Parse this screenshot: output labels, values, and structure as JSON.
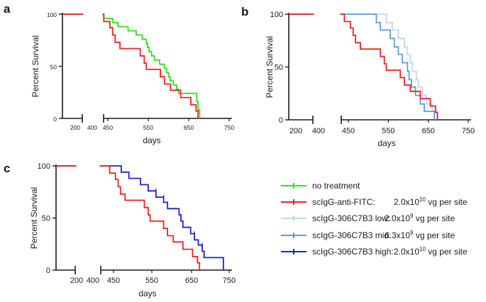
{
  "chart_data": [
    {
      "panel": "a",
      "type": "line",
      "subtype": "kaplan-meier",
      "xlabel": "days",
      "ylabel": "Percent Survival",
      "x_break": [
        200,
        400,
        450
      ],
      "xticks": [
        200,
        400,
        450,
        550,
        650,
        750
      ],
      "yticks": [
        0,
        50,
        100
      ],
      "xlim": [
        130,
        750
      ],
      "ylim": [
        0,
        100
      ],
      "series": [
        {
          "name": "no treatment",
          "color": "#33dd22",
          "points": [
            [
              130,
              100
            ],
            [
              440,
              100
            ],
            [
              440,
              96
            ],
            [
              462,
              96
            ],
            [
              462,
              92
            ],
            [
              475,
              92
            ],
            [
              475,
              88
            ],
            [
              500,
              88
            ],
            [
              500,
              84
            ],
            [
              520,
              84
            ],
            [
              520,
              80
            ],
            [
              535,
              80
            ],
            [
              535,
              76
            ],
            [
              545,
              76
            ],
            [
              545,
              72
            ],
            [
              548,
              72
            ],
            [
              548,
              68
            ],
            [
              552,
              68
            ],
            [
              552,
              64
            ],
            [
              558,
              64
            ],
            [
              558,
              60
            ],
            [
              565,
              60
            ],
            [
              565,
              56
            ],
            [
              578,
              56
            ],
            [
              578,
              52
            ],
            [
              590,
              52
            ],
            [
              590,
              48
            ],
            [
              595,
              48
            ],
            [
              595,
              44
            ],
            [
              600,
              44
            ],
            [
              600,
              40
            ],
            [
              604,
              40
            ],
            [
              604,
              36
            ],
            [
              612,
              36
            ],
            [
              612,
              32
            ],
            [
              620,
              32
            ],
            [
              620,
              28
            ],
            [
              625,
              28
            ],
            [
              625,
              24
            ],
            [
              670,
              24
            ],
            [
              670,
              16
            ],
            [
              673,
              16
            ],
            [
              673,
              8
            ],
            [
              677,
              8
            ],
            [
              677,
              0
            ]
          ]
        },
        {
          "name": "scIgG-anti-FITC",
          "color": "#ee2222",
          "points": [
            [
              130,
              100
            ],
            [
              440,
              100
            ],
            [
              440,
              93
            ],
            [
              455,
              93
            ],
            [
              455,
              87
            ],
            [
              462,
              87
            ],
            [
              462,
              80
            ],
            [
              468,
              80
            ],
            [
              468,
              73
            ],
            [
              480,
              73
            ],
            [
              480,
              67
            ],
            [
              530,
              67
            ],
            [
              530,
              60
            ],
            [
              540,
              60
            ],
            [
              540,
              53
            ],
            [
              545,
              53
            ],
            [
              545,
              47
            ],
            [
              580,
              47
            ],
            [
              580,
              40
            ],
            [
              590,
              40
            ],
            [
              590,
              33
            ],
            [
              605,
              33
            ],
            [
              605,
              27
            ],
            [
              630,
              27
            ],
            [
              630,
              20
            ],
            [
              655,
              20
            ],
            [
              655,
              13
            ],
            [
              668,
              13
            ],
            [
              668,
              7
            ],
            [
              673,
              7
            ],
            [
              673,
              0
            ]
          ]
        }
      ]
    },
    {
      "panel": "b",
      "type": "line",
      "subtype": "kaplan-meier",
      "xlabel": "days",
      "ylabel": "Percent Survival",
      "x_break": [
        200,
        400,
        450
      ],
      "xticks": [
        200,
        400,
        450,
        550,
        650,
        750
      ],
      "yticks": [
        0,
        50,
        100
      ],
      "xlim": [
        130,
        750
      ],
      "ylim": [
        0,
        100
      ],
      "series": [
        {
          "name": "scIgG-306C7B3 low",
          "color": "#bcd9f0",
          "points": [
            [
              130,
              100
            ],
            [
              545,
              100
            ],
            [
              545,
              92
            ],
            [
              560,
              92
            ],
            [
              560,
              85
            ],
            [
              575,
              85
            ],
            [
              575,
              77
            ],
            [
              590,
              77
            ],
            [
              590,
              69
            ],
            [
              597,
              69
            ],
            [
              597,
              62
            ],
            [
              605,
              62
            ],
            [
              605,
              54
            ],
            [
              610,
              54
            ],
            [
              610,
              46
            ],
            [
              620,
              46
            ],
            [
              620,
              38
            ],
            [
              625,
              38
            ],
            [
              625,
              31
            ],
            [
              635,
              31
            ],
            [
              635,
              23
            ],
            [
              645,
              23
            ],
            [
              645,
              15
            ],
            [
              660,
              15
            ],
            [
              660,
              8
            ],
            [
              672,
              8
            ],
            [
              672,
              0
            ]
          ]
        },
        {
          "name": "scIgG-306C7B3 mid",
          "color": "#5a9fdc",
          "points": [
            [
              130,
              100
            ],
            [
              520,
              100
            ],
            [
              520,
              92
            ],
            [
              530,
              92
            ],
            [
              530,
              85
            ],
            [
              555,
              85
            ],
            [
              555,
              77
            ],
            [
              565,
              77
            ],
            [
              565,
              69
            ],
            [
              575,
              69
            ],
            [
              575,
              62
            ],
            [
              585,
              62
            ],
            [
              585,
              54
            ],
            [
              598,
              54
            ],
            [
              598,
              46
            ],
            [
              602,
              46
            ],
            [
              602,
              38
            ],
            [
              608,
              38
            ],
            [
              608,
              31
            ],
            [
              618,
              31
            ],
            [
              618,
              23
            ],
            [
              630,
              23
            ],
            [
              630,
              15
            ],
            [
              640,
              15
            ],
            [
              640,
              8
            ],
            [
              665,
              8
            ],
            [
              665,
              0
            ]
          ]
        },
        {
          "name": "scIgG-anti-FITC",
          "color": "#ee2222",
          "points": [
            [
              130,
              100
            ],
            [
              440,
              100
            ],
            [
              440,
              93
            ],
            [
              455,
              93
            ],
            [
              455,
              87
            ],
            [
              462,
              87
            ],
            [
              462,
              80
            ],
            [
              468,
              80
            ],
            [
              468,
              73
            ],
            [
              480,
              73
            ],
            [
              480,
              67
            ],
            [
              530,
              67
            ],
            [
              530,
              60
            ],
            [
              540,
              60
            ],
            [
              540,
              53
            ],
            [
              545,
              53
            ],
            [
              545,
              47
            ],
            [
              580,
              47
            ],
            [
              580,
              40
            ],
            [
              590,
              40
            ],
            [
              590,
              33
            ],
            [
              605,
              33
            ],
            [
              605,
              27
            ],
            [
              630,
              27
            ],
            [
              630,
              20
            ],
            [
              655,
              20
            ],
            [
              655,
              13
            ],
            [
              668,
              13
            ],
            [
              668,
              7
            ],
            [
              673,
              7
            ],
            [
              673,
              0
            ]
          ]
        }
      ]
    },
    {
      "panel": "c",
      "type": "line",
      "subtype": "kaplan-meier",
      "xlabel": "days",
      "ylabel": "Percent Survival",
      "x_break": [
        200,
        400,
        450
      ],
      "xticks": [
        200,
        400,
        450,
        550,
        650,
        750
      ],
      "yticks": [
        0,
        50,
        100
      ],
      "xlim": [
        130,
        750
      ],
      "ylim": [
        0,
        100
      ],
      "series": [
        {
          "name": "scIgG-306C7B3 high",
          "color": "#1e22cc",
          "points": [
            [
              130,
              100
            ],
            [
              470,
              100
            ],
            [
              470,
              94
            ],
            [
              490,
              94
            ],
            [
              490,
              88
            ],
            [
              520,
              88
            ],
            [
              520,
              82
            ],
            [
              540,
              82
            ],
            [
              540,
              76
            ],
            [
              560,
              76
            ],
            [
              560,
              70
            ],
            [
              580,
              70
            ],
            [
              580,
              65
            ],
            [
              590,
              65
            ],
            [
              590,
              59
            ],
            [
              620,
              59
            ],
            [
              620,
              53
            ],
            [
              625,
              53
            ],
            [
              625,
              47
            ],
            [
              630,
              47
            ],
            [
              630,
              41
            ],
            [
              650,
              41
            ],
            [
              650,
              35
            ],
            [
              660,
              35
            ],
            [
              660,
              29
            ],
            [
              670,
              29
            ],
            [
              670,
              24
            ],
            [
              680,
              24
            ],
            [
              680,
              18
            ],
            [
              685,
              18
            ],
            [
              685,
              12
            ],
            [
              735,
              12
            ],
            [
              735,
              0
            ]
          ]
        },
        {
          "name": "scIgG-anti-FITC",
          "color": "#ee2222",
          "points": [
            [
              130,
              100
            ],
            [
              440,
              100
            ],
            [
              440,
              93
            ],
            [
              455,
              93
            ],
            [
              455,
              87
            ],
            [
              462,
              87
            ],
            [
              462,
              80
            ],
            [
              468,
              80
            ],
            [
              468,
              73
            ],
            [
              480,
              73
            ],
            [
              480,
              67
            ],
            [
              530,
              67
            ],
            [
              530,
              60
            ],
            [
              540,
              60
            ],
            [
              540,
              53
            ],
            [
              545,
              53
            ],
            [
              545,
              47
            ],
            [
              580,
              47
            ],
            [
              580,
              40
            ],
            [
              590,
              40
            ],
            [
              590,
              33
            ],
            [
              605,
              33
            ],
            [
              605,
              27
            ],
            [
              630,
              27
            ],
            [
              630,
              20
            ],
            [
              655,
              20
            ],
            [
              655,
              13
            ],
            [
              668,
              13
            ],
            [
              668,
              7
            ],
            [
              673,
              7
            ],
            [
              673,
              0
            ]
          ]
        }
      ]
    }
  ],
  "legend": [
    {
      "label": "no treatment",
      "color": "#33dd22",
      "dose_prefix": "",
      "dose_exp": "",
      "dose_suffix": ""
    },
    {
      "label": "scIgG-anti-FITC:",
      "color": "#ee2222",
      "dose_prefix": "2.0x10",
      "dose_exp": "10",
      "dose_suffix": " vg per site"
    },
    {
      "label": "scIgG-306C7B3 low:",
      "color": "#bcd9f0",
      "dose_prefix": "2.0x10",
      "dose_exp": "9",
      "dose_suffix": " vg per site"
    },
    {
      "label": "scIgG-306C7B3 mid:",
      "color": "#5a9fdc",
      "dose_prefix": "6.3x10",
      "dose_exp": "9",
      "dose_suffix": " vg per site"
    },
    {
      "label": "scIgG-306C7B3 high:",
      "color": "#1e22cc",
      "dose_prefix": "2.0x10",
      "dose_exp": "10",
      "dose_suffix": " vg per site"
    }
  ]
}
